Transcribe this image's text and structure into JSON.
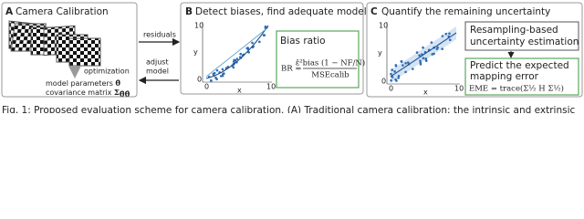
{
  "panel_a": {
    "label": "A",
    "title": "Camera Calibration",
    "step": "optimization",
    "output_1": "model parameters",
    "output_1_symbol": "θ̂",
    "output_2": "covariance matrix",
    "output_2_symbol": "Σ",
    "output_2_subscript": "θ̂θ̂"
  },
  "arrows": {
    "forward": "residuals",
    "back_1": "adjust",
    "back_2": "model"
  },
  "panel_b": {
    "label": "B",
    "title": "Detect biases, find adequate model",
    "plot": {
      "x_label": "x",
      "y_label": "y",
      "x_ticks": [
        "0",
        "10"
      ],
      "y_ticks": [
        "0",
        "10"
      ]
    },
    "box_title": "Bias ratio",
    "formula_lhs": "BR =",
    "numerator": "ε̂²bias (1 − NF/N)",
    "denominator": "MSEcalib"
  },
  "panel_c": {
    "label": "C",
    "title": "Quantify the remaining uncertainty",
    "plot": {
      "x_label": "x",
      "y_label": "y",
      "x_ticks": [
        "0",
        "10"
      ],
      "y_ticks": [
        "0",
        "10"
      ]
    },
    "box_1": [
      "Resampling-based",
      "uncertainty estimation"
    ],
    "box_2": [
      "Predict the expected",
      "mapping error"
    ],
    "formula": "EME = trace(Σ½ H Σ½)"
  },
  "caption": "Fig. 1: Proposed evaluation scheme for camera calibration. (A) Traditional camera calibration: the intrinsic and extrinsic"
}
